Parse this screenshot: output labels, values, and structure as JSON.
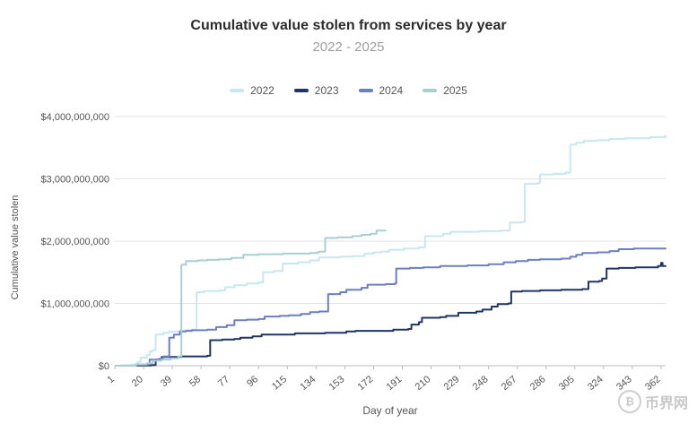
{
  "chart_data": {
    "type": "line",
    "title": "Cumulative value stolen from services by year",
    "subtitle": "2022 - 2025",
    "xlabel": "Day of year",
    "ylabel": "Cumulative value stolen",
    "x_ticks": [
      1,
      20,
      39,
      58,
      77,
      96,
      115,
      134,
      153,
      172,
      191,
      210,
      229,
      248,
      267,
      286,
      305,
      324,
      343,
      362
    ],
    "xlim": [
      1,
      365
    ],
    "ylim": [
      0,
      4000000000
    ],
    "y_ticks": [
      0,
      1000000000,
      2000000000,
      3000000000,
      4000000000
    ],
    "y_tick_labels": [
      "$0",
      "$1,000,000,000",
      "$2,000,000,000",
      "$3,000,000,000",
      "$4,000,000,000"
    ],
    "grid": true,
    "legend_position": "top",
    "series": [
      {
        "name": "2022",
        "color": "#c8e7f4",
        "points": [
          [
            1,
            0
          ],
          [
            5,
            10000000
          ],
          [
            12,
            20000000
          ],
          [
            16,
            60000000
          ],
          [
            18,
            130000000
          ],
          [
            22,
            170000000
          ],
          [
            24,
            230000000
          ],
          [
            26,
            250000000
          ],
          [
            28,
            500000000
          ],
          [
            33,
            530000000
          ],
          [
            37,
            550000000
          ],
          [
            44,
            560000000
          ],
          [
            48,
            570000000
          ],
          [
            52,
            580000000
          ],
          [
            55,
            1180000000
          ],
          [
            60,
            1200000000
          ],
          [
            70,
            1210000000
          ],
          [
            74,
            1260000000
          ],
          [
            80,
            1290000000
          ],
          [
            88,
            1320000000
          ],
          [
            96,
            1340000000
          ],
          [
            99,
            1500000000
          ],
          [
            106,
            1520000000
          ],
          [
            112,
            1640000000
          ],
          [
            122,
            1660000000
          ],
          [
            130,
            1690000000
          ],
          [
            136,
            1740000000
          ],
          [
            150,
            1750000000
          ],
          [
            158,
            1760000000
          ],
          [
            166,
            1800000000
          ],
          [
            172,
            1820000000
          ],
          [
            177,
            1830000000
          ],
          [
            182,
            1860000000
          ],
          [
            192,
            1880000000
          ],
          [
            202,
            1900000000
          ],
          [
            206,
            2080000000
          ],
          [
            218,
            2120000000
          ],
          [
            223,
            2150000000
          ],
          [
            242,
            2160000000
          ],
          [
            256,
            2170000000
          ],
          [
            262,
            2300000000
          ],
          [
            270,
            2310000000
          ],
          [
            272,
            2920000000
          ],
          [
            280,
            2930000000
          ],
          [
            282,
            3070000000
          ],
          [
            291,
            3080000000
          ],
          [
            299,
            3100000000
          ],
          [
            302,
            3550000000
          ],
          [
            306,
            3580000000
          ],
          [
            311,
            3610000000
          ],
          [
            320,
            3620000000
          ],
          [
            328,
            3640000000
          ],
          [
            338,
            3650000000
          ],
          [
            355,
            3670000000
          ],
          [
            365,
            3700000000
          ]
        ]
      },
      {
        "name": "2023",
        "color": "#1f3567",
        "points": [
          [
            1,
            0
          ],
          [
            15,
            5000000
          ],
          [
            25,
            10000000
          ],
          [
            28,
            100000000
          ],
          [
            32,
            140000000
          ],
          [
            45,
            150000000
          ],
          [
            62,
            160000000
          ],
          [
            64,
            410000000
          ],
          [
            72,
            420000000
          ],
          [
            80,
            430000000
          ],
          [
            84,
            450000000
          ],
          [
            92,
            470000000
          ],
          [
            98,
            500000000
          ],
          [
            120,
            520000000
          ],
          [
            140,
            530000000
          ],
          [
            154,
            550000000
          ],
          [
            160,
            560000000
          ],
          [
            185,
            580000000
          ],
          [
            195,
            590000000
          ],
          [
            197,
            660000000
          ],
          [
            202,
            700000000
          ],
          [
            204,
            770000000
          ],
          [
            216,
            780000000
          ],
          [
            220,
            800000000
          ],
          [
            228,
            850000000
          ],
          [
            240,
            870000000
          ],
          [
            244,
            900000000
          ],
          [
            250,
            950000000
          ],
          [
            254,
            990000000
          ],
          [
            261,
            1000000000
          ],
          [
            263,
            1190000000
          ],
          [
            270,
            1200000000
          ],
          [
            282,
            1210000000
          ],
          [
            296,
            1220000000
          ],
          [
            310,
            1230000000
          ],
          [
            314,
            1350000000
          ],
          [
            321,
            1360000000
          ],
          [
            323,
            1400000000
          ],
          [
            326,
            1560000000
          ],
          [
            334,
            1570000000
          ],
          [
            345,
            1580000000
          ],
          [
            360,
            1600000000
          ],
          [
            362,
            1650000000
          ],
          [
            363,
            1600000000
          ],
          [
            365,
            1610000000
          ]
        ]
      },
      {
        "name": "2024",
        "color": "#6c7fc0",
        "points": [
          [
            1,
            0
          ],
          [
            15,
            20000000
          ],
          [
            24,
            100000000
          ],
          [
            30,
            110000000
          ],
          [
            33,
            150000000
          ],
          [
            37,
            450000000
          ],
          [
            40,
            500000000
          ],
          [
            44,
            550000000
          ],
          [
            48,
            560000000
          ],
          [
            52,
            570000000
          ],
          [
            62,
            580000000
          ],
          [
            68,
            620000000
          ],
          [
            75,
            650000000
          ],
          [
            80,
            730000000
          ],
          [
            88,
            740000000
          ],
          [
            96,
            750000000
          ],
          [
            100,
            790000000
          ],
          [
            110,
            800000000
          ],
          [
            116,
            810000000
          ],
          [
            124,
            830000000
          ],
          [
            130,
            860000000
          ],
          [
            136,
            870000000
          ],
          [
            142,
            1150000000
          ],
          [
            150,
            1180000000
          ],
          [
            154,
            1220000000
          ],
          [
            164,
            1250000000
          ],
          [
            168,
            1300000000
          ],
          [
            180,
            1310000000
          ],
          [
            186,
            1320000000
          ],
          [
            187,
            1560000000
          ],
          [
            196,
            1570000000
          ],
          [
            205,
            1580000000
          ],
          [
            216,
            1600000000
          ],
          [
            234,
            1610000000
          ],
          [
            248,
            1630000000
          ],
          [
            258,
            1660000000
          ],
          [
            266,
            1680000000
          ],
          [
            274,
            1700000000
          ],
          [
            282,
            1710000000
          ],
          [
            296,
            1720000000
          ],
          [
            302,
            1750000000
          ],
          [
            306,
            1780000000
          ],
          [
            310,
            1810000000
          ],
          [
            320,
            1820000000
          ],
          [
            328,
            1840000000
          ],
          [
            334,
            1870000000
          ],
          [
            344,
            1880000000
          ],
          [
            365,
            1890000000
          ]
        ]
      },
      {
        "name": "2025",
        "color": "#a9cfd2",
        "points": [
          [
            1,
            0
          ],
          [
            15,
            20000000
          ],
          [
            22,
            40000000
          ],
          [
            26,
            80000000
          ],
          [
            32,
            100000000
          ],
          [
            38,
            120000000
          ],
          [
            43,
            150000000
          ],
          [
            45,
            1620000000
          ],
          [
            48,
            1680000000
          ],
          [
            56,
            1690000000
          ],
          [
            62,
            1700000000
          ],
          [
            70,
            1710000000
          ],
          [
            78,
            1730000000
          ],
          [
            86,
            1780000000
          ],
          [
            96,
            1790000000
          ],
          [
            112,
            1800000000
          ],
          [
            130,
            1810000000
          ],
          [
            135,
            1820000000
          ],
          [
            136,
            1830000000
          ],
          [
            140,
            2050000000
          ],
          [
            148,
            2060000000
          ],
          [
            158,
            2080000000
          ],
          [
            164,
            2100000000
          ],
          [
            170,
            2120000000
          ],
          [
            174,
            2170000000
          ],
          [
            180,
            2180000000
          ]
        ]
      }
    ]
  },
  "watermark": {
    "text": "币界网",
    "icon": "bitcoin-icon",
    "symbol": "₿"
  }
}
